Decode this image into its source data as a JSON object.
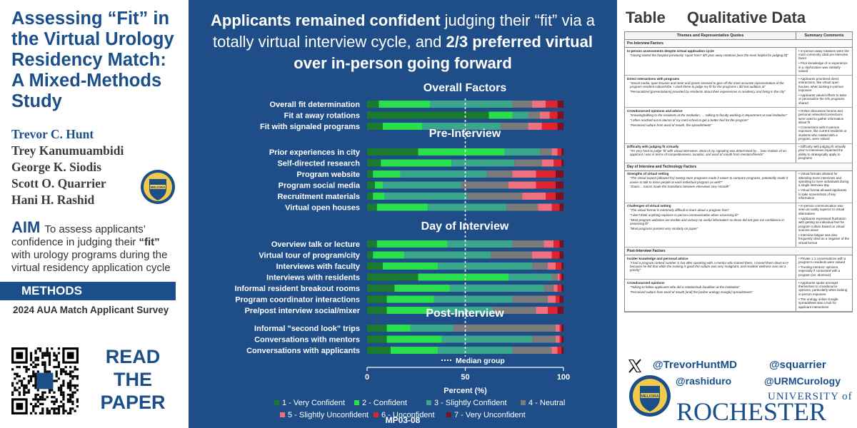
{
  "left": {
    "title_lines": [
      "Assessing “Fit” in",
      "the Virtual Urology",
      "Residency Match:"
    ],
    "title_dark_lines": [
      "A Mixed-Methods",
      "Study"
    ],
    "authors": [
      "Trevor C. Hunt",
      "Trey Kanumuambidi",
      "George K. Siodis",
      "Scott O. Quarrier",
      "Hani H. Rashid"
    ],
    "seal_text": "MELIORA",
    "aim_label": "AIM",
    "aim_text_1": "To assess applicants’ confidence in judging their ",
    "aim_bold": "“fit”",
    "aim_text_2": " with urology programs during the virtual residency application cycle",
    "methods_label": "METHODS",
    "methods_text": "2024 AUA Match Applicant Survey",
    "read_paper": [
      "READ",
      "THE",
      "PAPER"
    ]
  },
  "center": {
    "headline_b1": "Applicants remained confident",
    "headline_t1": " judging their “fit” via a totally virtual interview cycle, and ",
    "headline_b2": "2/3 preferred virtual over in-person going forward",
    "code": "MP03-08"
  },
  "chart_data": {
    "type": "bar",
    "orientation": "horizontal-stacked",
    "xlabel": "Percent (%)",
    "xlim": [
      0,
      100
    ],
    "xticks": [
      0,
      50,
      100
    ],
    "median_marker_x": 50,
    "median_label": "Median group",
    "legend_placement": "bottom",
    "series_names": [
      "1 - Very Confident",
      "2 - Confident",
      "3 - Slightly Confident",
      "4 - Neutral",
      "5 - Slightly Unconfident",
      "6 - Unconfident",
      "7 - Very Unconfident"
    ],
    "series_colors": [
      "#1a7a2e",
      "#29e04a",
      "#3aa68b",
      "#7a7a7a",
      "#f07080",
      "#e2232d",
      "#7a1020"
    ],
    "groups": [
      {
        "title": "Overall Factors",
        "items": [
          {
            "label": "Overall fit determination",
            "values": [
              6,
              26,
              42,
              10,
              7,
              6,
              3
            ]
          },
          {
            "label": "Fit at away rotations",
            "values": [
              62,
              12,
              8,
              6,
              5,
              4,
              3
            ]
          },
          {
            "label": "Fit with signaled programs",
            "values": [
              8,
              20,
              40,
              14,
              7,
              8,
              3
            ]
          }
        ]
      },
      {
        "title": "Pre-Interview",
        "items": [
          {
            "label": "Prior experiences in city",
            "values": [
              26,
              44,
              18,
              6,
              3,
              2,
              1
            ]
          },
          {
            "label": "Self-directed research",
            "values": [
              7,
              36,
              32,
              14,
              6,
              4,
              1
            ]
          },
          {
            "label": "Program website",
            "values": [
              3,
              14,
              44,
              13,
              12,
              10,
              4
            ]
          },
          {
            "label": "Program social media",
            "values": [
              4,
              4,
              40,
              24,
              14,
              10,
              4
            ]
          },
          {
            "label": "Recruitment materials",
            "values": [
              3,
              6,
              42,
              28,
              12,
              5,
              4
            ]
          },
          {
            "label": "Virtual open houses",
            "values": [
              5,
              26,
              40,
              16,
              7,
              4,
              2
            ]
          }
        ]
      },
      {
        "title": "Day of Interview",
        "items": [
          {
            "label": "Overview talk or lecture",
            "values": [
              5,
              36,
              33,
              16,
              5,
              3,
              2
            ]
          },
          {
            "label": "Virtual tour of program/city",
            "values": [
              3,
              16,
              44,
              21,
              10,
              4,
              2
            ]
          },
          {
            "label": "Interviews with faculty",
            "values": [
              8,
              28,
              48,
              8,
              4,
              3,
              1
            ]
          },
          {
            "label": "Interviews with residents",
            "values": [
              26,
              46,
              22,
              3,
              1,
              1,
              1
            ]
          },
          {
            "label": "Informal resident breakout rooms",
            "values": [
              14,
              28,
              48,
              5,
              2,
              2,
              1
            ]
          },
          {
            "label": "Program coordinator interactions",
            "values": [
              10,
              24,
              40,
              18,
              4,
              2,
              2
            ]
          },
          {
            "label": "Pre/post interview social/mixer",
            "values": [
              10,
              22,
              32,
              22,
              6,
              5,
              3
            ]
          }
        ]
      },
      {
        "title": "Post-Interview",
        "items": [
          {
            "label": "Informal \"second look\" trips",
            "values": [
              10,
              12,
              22,
              52,
              2,
              1,
              1
            ]
          },
          {
            "label": "Conversations with mentors",
            "values": [
              10,
              28,
              46,
              12,
              2,
              1,
              1
            ]
          },
          {
            "label": "Conversations with applicants",
            "values": [
              12,
              24,
              38,
              20,
              3,
              2,
              1
            ]
          }
        ]
      }
    ]
  },
  "right": {
    "table_label": "Table",
    "table_title": "Qualitative Data",
    "table_headers": [
      "Themes and Representative Quotes",
      "Summary Comments"
    ],
    "sections": [
      {
        "title": "Pre-Interview Factors",
        "rows": [
          {
            "theme": "In-person assessments despite virtual application cycle",
            "quotes": [
              "“Having visited the hospital previously *apart from* 4th year away rotations [was the most helpful for judging fit]”"
            ],
            "summary": [
              "In-person away rotations were the most commonly cited pre-interview factor",
              "Prior knowledge of or experience in a city/location was similarly valued"
            ]
          },
          {
            "theme": "Direct interactions with programs",
            "quotes": [
              "“Social media, open houses and meet and greets seemed to give off the most accurate representation of the program resident culture/vibe. I used these to judge my fit for the programs I did not audition at”",
              "“Personalized [presentations] provided by residents about their experiences in residency and living in the city”"
            ],
            "summary": [
              "Applicants prioritized direct interactions, like virtual open houses, when lacking in-person exposure",
              "Applicants valued efforts to tailor or personalize the info programs shared"
            ]
          },
          {
            "theme": "Crowdsourced opinions and advice",
            "quotes": [
              "“Knowing/talking to the residents at the institution, … talking to faculty working in department at said institution”",
              "“I often reached out to alumni of my med school to get a better feel for the program”",
              "“Perceived culture from word of mouth, the spreadsheets”"
            ],
            "summary": [
              "Online discussion forums and personal networks/connections were used to gather information about fit",
              "Connections with in-person exposure, like current residents or students who rotated with a program, were valued"
            ]
          },
          {
            "theme": "Difficulty with judging fit virtually",
            "quotes": [
              "“It’s very hard to judge ‘fit’ with virtual interviews.  Most of my signaling was determined by… how realistic of an applicant I was in terms of competitiveness, location, and word of mouth from mentors/friends”"
            ],
            "summary": [
              "Difficulty with judging fit virtually prior to interviews impacted the ability to strategically apply to programs"
            ]
          }
        ]
      },
      {
        "title": "Day of Interview and Technology Factors",
        "rows": [
          {
            "theme": "Strengths of virtual setting",
            "quotes": [
              "“The virtual aspect [allowed for] seeing more programs made it easier to compare programs, potentially made it easier to talk to more people at each individual program as well?”",
              "“Zoom… rooms made the transitions between interviews very smooth”"
            ],
            "summary": [
              "Virtual formats allowed for attending more interviews and speaking to more individuals during a single interview day",
              "Virtual format allowed applicants to take screenshots of key information"
            ]
          },
          {
            "theme": "Challenges of virtual setting",
            "quotes": [
              "“The virtual format is extremely difficult to learn about a program from”",
              "“I don’t think anything replaces in-person communication when assessing fit”",
              "“Most program websites are terrible and convey no useful information so those did not give me confidence in assessing fit”",
              "“Most programs present very similarly on paper”"
            ],
            "summary": [
              "In-person communication was seen as vastly superior to virtual alternatives",
              "Applicants expressed frustration with getting an individual feel for program culture based on virtual sources alone",
              "Interview fatigue was also frequently cited as a negative of the virtual format"
            ]
          }
        ]
      },
      {
        "title": "Post-Interview Factors",
        "rows": [
          {
            "theme": "Insider knowledge and personal advice",
            "quotes": [
              "“I had a program ranked number 3, but after speaking with a mentor who trained there, I moved them down to 9 because he felt that while the training is good the culture was very malignant, and resident wellness was not a priority”"
            ],
            "summary": [
              "Private 1:1 conversations with a program’s residents were valued",
              "Trusting mentors’ opinions, especially if connected with a program (ex: alumnus)"
            ]
          },
          {
            "theme": "Crowdsourced opinions",
            "quotes": [
              "“Talking to fellow applicants who did a rotation/sub-i/audition at the institution”",
              "“Perceived culture from word of mouth [and] the [online urology Google] spreadsheets”"
            ],
            "summary": [
              "Applicants spoke amongst themselves to crowdsource opinions, particularly when lacking in-person exposure",
              "The urology online Google spreadsheet was a hub for applicant interactions"
            ]
          }
        ]
      }
    ],
    "handles": [
      "@TrevorHuntMD",
      "@squarrier",
      "@rashiduro",
      "@URMCurology"
    ],
    "university_small": "UNIVERSITY of",
    "university_large": "ROCHESTER",
    "seal_text": "MELIORA"
  }
}
